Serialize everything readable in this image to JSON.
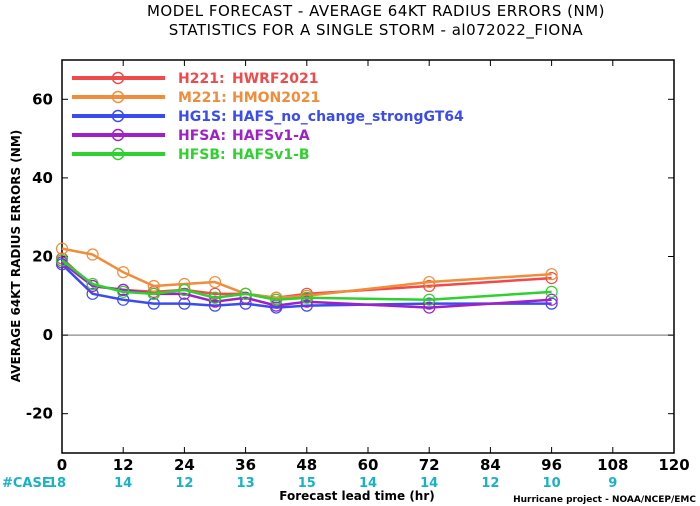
{
  "chart_data": {
    "type": "line",
    "title_line1": "MODEL FORECAST - AVERAGE 64KT RADIUS ERRORS (NM)",
    "title_line2": "STATISTICS FOR A SINGLE STORM - al072022_FIONA",
    "xlabel": "Forecast lead time (hr)",
    "ylabel": "AVERAGE 64KT RADIUS ERRORS (NM)",
    "xlim": [
      0,
      120
    ],
    "ylim": [
      -30,
      70
    ],
    "xticks": [
      0,
      12,
      24,
      36,
      48,
      60,
      72,
      84,
      96,
      108,
      120
    ],
    "yticks": [
      -20,
      0,
      20,
      40,
      60
    ],
    "grid": false,
    "zero_line": true,
    "legend_position": "top-left",
    "series": [
      {
        "name": "H221:",
        "desc": "HWRF2021",
        "color": "#f04a4a",
        "x": [
          0,
          6,
          12,
          18,
          24,
          30,
          36,
          42,
          48,
          72,
          96
        ],
        "y": [
          19.5,
          12.5,
          11.5,
          11,
          11.5,
          10.5,
          10.5,
          9.5,
          10.5,
          12.5,
          14.5
        ]
      },
      {
        "name": "M221:",
        "desc": "HMON2021",
        "color": "#f08c3a",
        "x": [
          0,
          6,
          12,
          18,
          24,
          30,
          36,
          42,
          48,
          72,
          96
        ],
        "y": [
          22,
          20.5,
          16,
          12.5,
          13,
          13.5,
          10.5,
          9.5,
          10,
          13.5,
          15.5
        ]
      },
      {
        "name": "HG1S:",
        "desc": "HAFS_no_change_strongGT64",
        "color": "#3a4cf0",
        "x": [
          0,
          6,
          12,
          18,
          24,
          30,
          36,
          42,
          48,
          72,
          96
        ],
        "y": [
          18,
          10.5,
          9,
          8,
          8,
          7.5,
          8,
          7,
          7.5,
          8,
          8
        ]
      },
      {
        "name": "HFSA:",
        "desc": "HAFSv1-A",
        "color": "#a020c8",
        "x": [
          0,
          6,
          12,
          18,
          24,
          30,
          36,
          42,
          48,
          72,
          96
        ],
        "y": [
          18.5,
          12.5,
          11.5,
          10.5,
          10.5,
          8.5,
          9.5,
          7.5,
          8.5,
          7,
          9
        ]
      },
      {
        "name": "HFSB:",
        "desc": "HAFSv1-B",
        "color": "#2ed12e",
        "x": [
          0,
          6,
          12,
          18,
          24,
          30,
          36,
          42,
          48,
          72,
          96
        ],
        "y": [
          19,
          13,
          11,
          10.5,
          11.5,
          9.5,
          10.5,
          9,
          9.5,
          9,
          11
        ]
      }
    ],
    "cases": {
      "label": "#CASE",
      "x": [
        0,
        12,
        24,
        36,
        48,
        60,
        72,
        84,
        96,
        108
      ],
      "values": [
        "18",
        "14",
        "12",
        "13",
        "15",
        "14",
        "14",
        "12",
        "10",
        "9"
      ]
    },
    "colors": {
      "case_label": "#17b2c6",
      "zero_line": "#8a8a8a"
    }
  },
  "footer": "Hurricane project - NOAA/NCEP/EMC"
}
